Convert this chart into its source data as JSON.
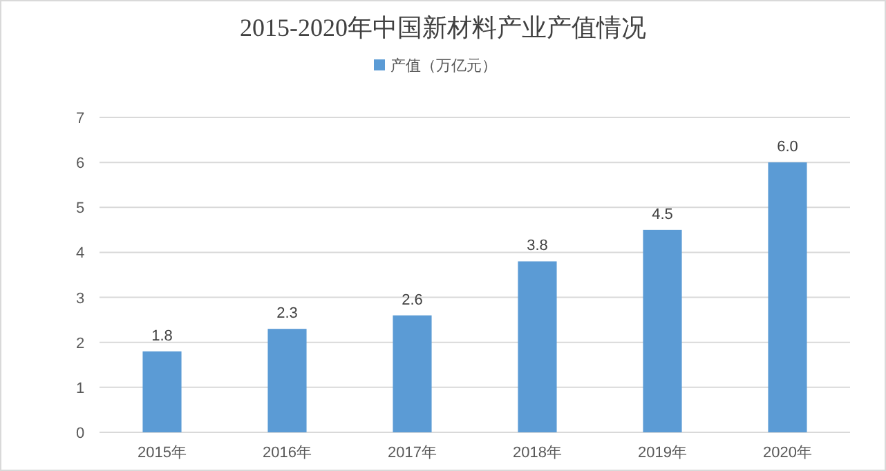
{
  "chart_data": {
    "type": "bar",
    "title": "2015-2020年中国新材料产业产值情况",
    "categories": [
      "2015年",
      "2016年",
      "2017年",
      "2018年",
      "2019年",
      "2020年"
    ],
    "series": [
      {
        "name": "产值（万亿元）",
        "color": "#5b9bd5",
        "values": [
          1.8,
          2.3,
          2.6,
          3.8,
          4.5,
          6.0
        ],
        "value_labels": [
          "1.8",
          "2.3",
          "2.6",
          "3.8",
          "4.5",
          "6.0"
        ]
      }
    ],
    "ylim": [
      0,
      7
    ],
    "yticks": [
      0,
      1,
      2,
      3,
      4,
      5,
      6,
      7
    ],
    "grid": "y",
    "legend": "top"
  }
}
